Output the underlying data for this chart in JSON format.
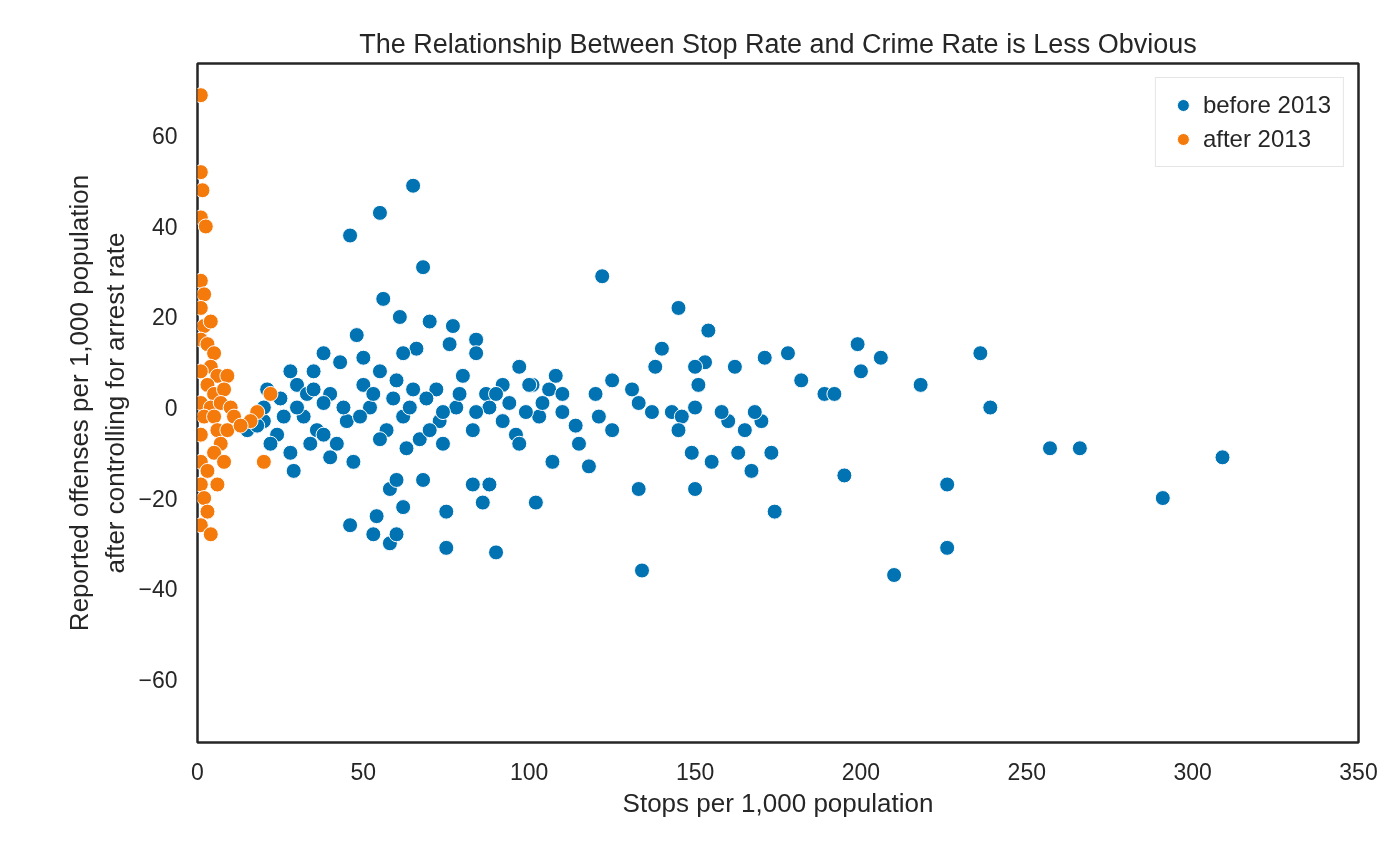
{
  "chart_data": {
    "type": "scatter",
    "title": "The Relationship Between Stop Rate and Crime Rate is Less Obvious",
    "xlabel": "Stops per 1,000 population",
    "ylabel": "Reported offenses per 1,000 population\nafter controlling for arrest rate",
    "xlim": [
      0,
      350
    ],
    "ylim": [
      -74,
      76
    ],
    "xticks": [
      0,
      50,
      100,
      150,
      200,
      250,
      300,
      350
    ],
    "yticks": [
      {
        "value": -60,
        "label": "−60"
      },
      {
        "value": -40,
        "label": "−40"
      },
      {
        "value": -20,
        "label": "−20"
      },
      0,
      20,
      40,
      60
    ],
    "grid": false,
    "legend": "top right",
    "marker": "circle",
    "series": [
      {
        "name": "before 2013",
        "color": "#0173b2",
        "x": [
          65,
          55,
          46,
          68,
          122,
          56,
          145,
          61,
          70,
          84,
          48,
          154,
          77,
          38,
          43,
          66,
          140,
          153,
          162,
          178,
          199,
          171,
          206,
          236,
          200,
          138,
          125,
          97,
          108,
          35,
          28,
          21,
          25,
          30,
          40,
          50,
          55,
          60,
          72,
          80,
          87,
          92,
          101,
          106,
          120,
          131,
          150,
          151,
          182,
          189,
          192,
          218,
          239,
          15,
          20,
          24,
          28,
          32,
          36,
          42,
          45,
          52,
          57,
          62,
          67,
          73,
          78,
          83,
          88,
          92,
          96,
          103,
          107,
          114,
          118,
          121,
          125,
          133,
          143,
          146,
          149,
          155,
          160,
          163,
          165,
          167,
          170,
          173,
          257,
          266,
          29,
          40,
          47,
          58,
          62,
          60,
          68,
          83,
          86,
          88,
          102,
          75,
          46,
          53,
          58,
          60,
          54,
          75,
          90,
          133,
          150,
          174,
          195,
          226,
          134,
          210,
          226,
          291,
          309,
          20,
          26,
          33,
          38,
          44,
          49,
          53,
          59,
          64,
          69,
          74,
          79,
          84,
          90,
          94,
          99,
          104,
          110,
          70,
          65,
          55,
          38,
          30,
          34,
          110,
          115,
          145,
          168,
          158,
          137,
          150,
          100,
          84,
          76,
          62,
          50,
          35,
          22,
          18,
          63,
          74,
          97
        ],
        "values": [
          49,
          43,
          38,
          31,
          29,
          24,
          22,
          20,
          19,
          15,
          16,
          17,
          18,
          12,
          10,
          13,
          13,
          10,
          9,
          12,
          14,
          11,
          11,
          12,
          8,
          9,
          6,
          9,
          7,
          8,
          8,
          4,
          2,
          5,
          3,
          5,
          8,
          6,
          4,
          7,
          3,
          5,
          5,
          4,
          3,
          4,
          9,
          5,
          6,
          3,
          3,
          5,
          0,
          -5,
          -3,
          -6,
          -10,
          -2,
          -5,
          -8,
          -3,
          0,
          -5,
          -2,
          -7,
          -3,
          0,
          -5,
          0,
          -3,
          -6,
          -2,
          -12,
          -4,
          -13,
          -2,
          -5,
          1,
          -1,
          -2,
          -10,
          -12,
          -3,
          -10,
          -5,
          -14,
          -3,
          -10,
          -9,
          -9,
          -14,
          -11,
          -12,
          -18,
          -22,
          -16,
          -16,
          -17,
          -21,
          -17,
          -21,
          -23,
          -26,
          -28,
          -30,
          -28,
          -24,
          -31,
          -32,
          -18,
          -18,
          -23,
          -15,
          -17,
          -36,
          -37,
          -31,
          -20,
          -11,
          0,
          -2,
          3,
          1,
          0,
          -2,
          3,
          2,
          0,
          2,
          -1,
          3,
          -1,
          3,
          1,
          -1,
          1,
          -1,
          -5,
          4,
          -7,
          -6,
          0,
          -8,
          3,
          -8,
          -5,
          -1,
          -1,
          -1,
          0,
          5,
          12,
          14,
          12,
          11,
          4,
          -8,
          -4,
          -9,
          -8,
          -8
        ]
      },
      {
        "name": "after 2013",
        "color": "#f47a0c",
        "x": [
          1,
          1,
          1.5,
          1,
          2.5,
          1,
          2,
          1,
          2,
          4,
          1,
          3,
          5,
          4,
          1,
          6,
          3,
          9,
          5,
          8,
          1,
          4,
          7,
          10,
          2,
          5,
          6,
          1,
          9,
          7,
          5,
          8,
          1,
          3,
          6,
          1,
          2,
          3,
          1,
          4,
          18,
          16,
          20,
          22,
          11,
          13
        ],
        "values": [
          69,
          52,
          48,
          42,
          40,
          28,
          25,
          22,
          18,
          19,
          15,
          14,
          12,
          9,
          8,
          7,
          5,
          7,
          3,
          4,
          1,
          0,
          1,
          0,
          -2,
          -2,
          -5,
          -6,
          -5,
          -8,
          -10,
          -12,
          -12,
          -14,
          -17,
          -17,
          -20,
          -23,
          -26,
          -28,
          -1,
          -3,
          -12,
          3,
          -2,
          -4
        ]
      }
    ]
  }
}
